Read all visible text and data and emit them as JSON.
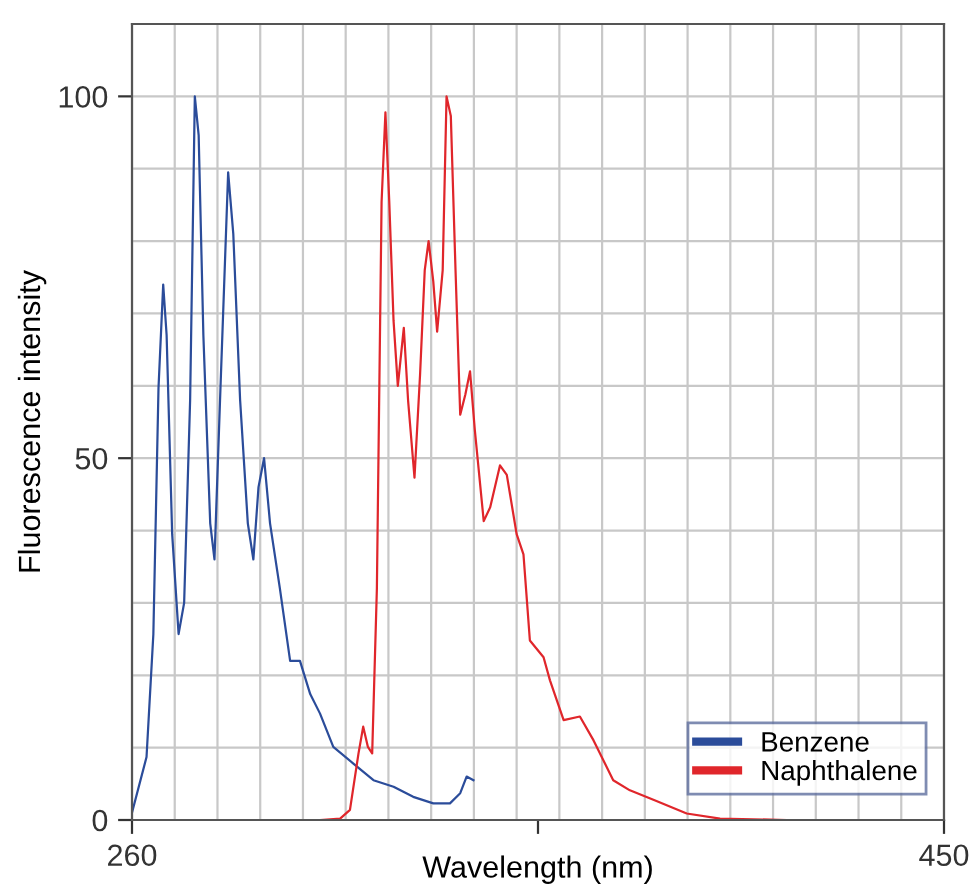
{
  "chart_data": {
    "type": "line",
    "xlabel": "Wavelength (nm)",
    "ylabel": "Fluorescence intensity",
    "xlim": [
      260,
      450
    ],
    "ylim": [
      0,
      110
    ],
    "xticks": [
      260,
      {
        "value": 355,
        "label": null
      },
      450
    ],
    "yticks": [
      0,
      {
        "value": 10,
        "label": null
      },
      {
        "value": 20,
        "label": null
      },
      {
        "value": 30,
        "label": null
      },
      {
        "value": 40,
        "label": null
      },
      50,
      {
        "value": 60,
        "label": null
      },
      {
        "value": 70,
        "label": null
      },
      {
        "value": 80,
        "label": null
      },
      {
        "value": 90,
        "label": null
      },
      100
    ],
    "grid": true,
    "legend": "bottom right",
    "marker": "none",
    "line_style": "solid",
    "series": [
      {
        "name": "Benzene",
        "color": "#2b4c9a",
        "x": [
          260,
          263.4,
          265,
          266.2,
          267.3,
          268.1,
          269.4,
          270.9,
          272.2,
          273.6,
          274.7,
          275.6,
          276.7,
          278.3,
          279.3,
          280.6,
          282.5,
          283.7,
          285.3,
          287.1,
          288.4,
          289.6,
          290.9,
          292.3,
          294.6,
          297,
          299.3,
          301.7,
          304,
          307.1,
          311.8,
          316.5,
          321.2,
          325.8,
          330.5,
          334.4,
          336.8,
          338.3,
          339.9
        ],
        "values": [
          1,
          8.7,
          25.7,
          59.7,
          74,
          67,
          39.5,
          25.7,
          30,
          58,
          100,
          94.6,
          67,
          41,
          36,
          58,
          89.5,
          81,
          58,
          41,
          36,
          46,
          50,
          41,
          32,
          22,
          22,
          17.4,
          14.7,
          10.1,
          7.8,
          5.5,
          4.6,
          3.2,
          2.3,
          2.3,
          3.7,
          6,
          5.5
        ]
      },
      {
        "name": "Naphthalene",
        "color": "#e0262b",
        "x": [
          304,
          308.7,
          311,
          313,
          314.1,
          315.2,
          316.2,
          317.3,
          318.4,
          319.3,
          320.2,
          321.2,
          322.2,
          323.6,
          324.6,
          326.1,
          327.4,
          328.5,
          329.4,
          330.5,
          331.4,
          332.7,
          333.6,
          334.6,
          335.7,
          336.8,
          338,
          339.1,
          340.2,
          342.3,
          343.8,
          346.1,
          347.7,
          350,
          351.6,
          353.1,
          356.3,
          357.8,
          361,
          364.8,
          368,
          372.6,
          376.5,
          382,
          389.8,
          397.6,
          413.2,
          428.8,
          449.5
        ],
        "values": [
          0,
          0.2,
          1.4,
          9.2,
          12.9,
          10.1,
          9.2,
          32,
          85.4,
          97.8,
          85.4,
          69,
          60,
          68,
          58,
          47.3,
          61.5,
          76,
          80,
          74.4,
          67.5,
          76,
          100,
          97.3,
          76,
          56,
          58.8,
          62,
          54,
          41.3,
          43.2,
          49,
          47.7,
          39.5,
          36.7,
          24.8,
          22.5,
          19.3,
          13.8,
          14.3,
          11,
          5.5,
          4.1,
          2.8,
          0.9,
          0.2,
          0,
          0,
          0
        ]
      }
    ]
  }
}
